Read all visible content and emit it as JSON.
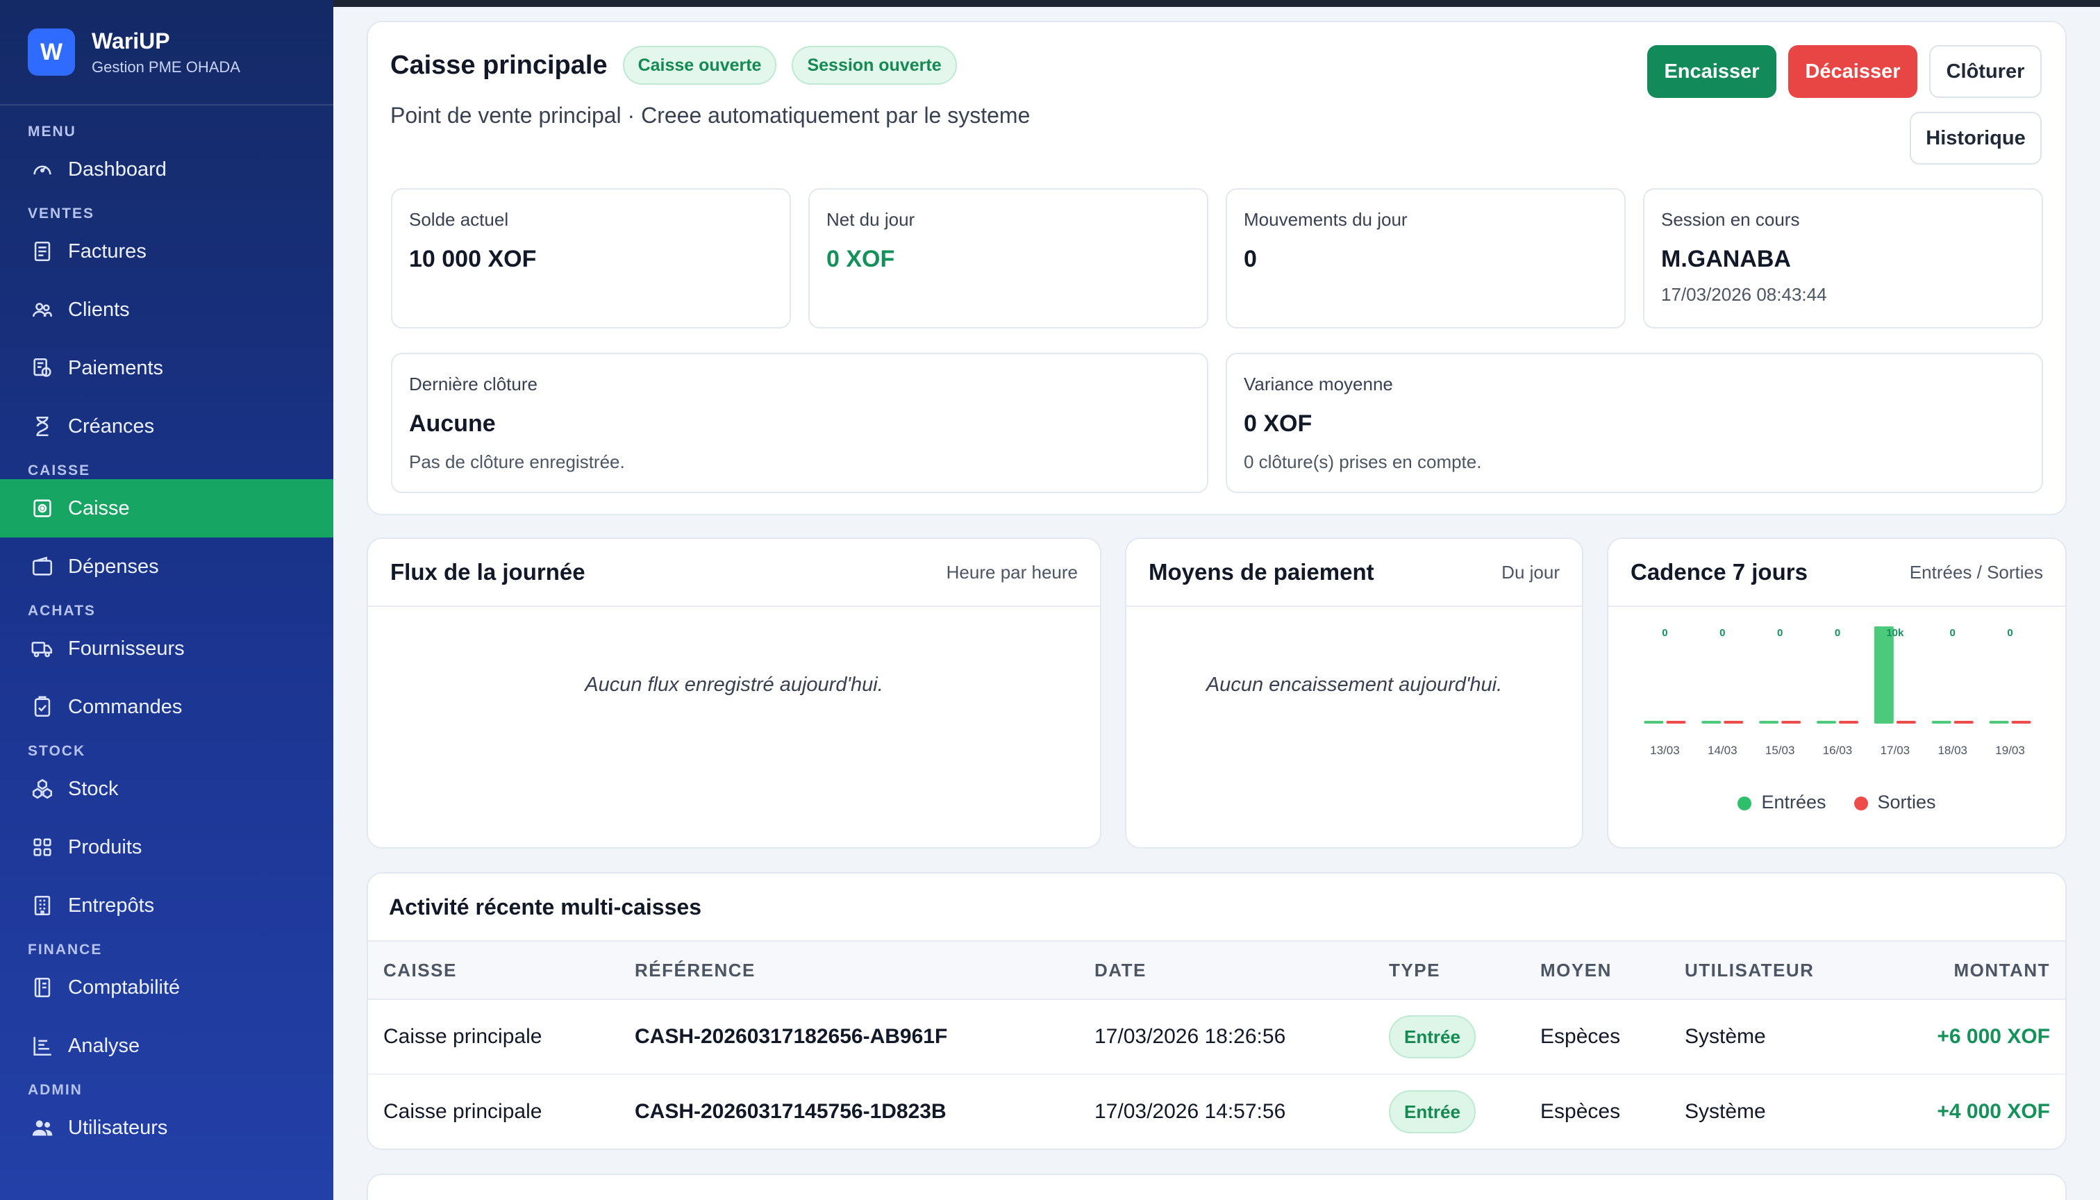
{
  "brand": {
    "logo_letter": "W",
    "name": "WariUP",
    "subtitle": "Gestion PME OHADA"
  },
  "sidebar": {
    "sections": [
      {
        "label": "MENU",
        "items": [
          {
            "label": "Dashboard",
            "icon": "gauge-icon"
          }
        ]
      },
      {
        "label": "VENTES",
        "items": [
          {
            "label": "Factures",
            "icon": "invoice-icon"
          },
          {
            "label": "Clients",
            "icon": "users-icon"
          },
          {
            "label": "Paiements",
            "icon": "payment-icon"
          },
          {
            "label": "Créances",
            "icon": "hourglass-icon"
          }
        ]
      },
      {
        "label": "CAISSE",
        "items": [
          {
            "label": "Caisse",
            "icon": "cash-register-icon",
            "active": true
          },
          {
            "label": "Dépenses",
            "icon": "wallet-icon"
          }
        ]
      },
      {
        "label": "ACHATS",
        "items": [
          {
            "label": "Fournisseurs",
            "icon": "truck-icon"
          },
          {
            "label": "Commandes",
            "icon": "clipboard-check-icon"
          }
        ]
      },
      {
        "label": "STOCK",
        "items": [
          {
            "label": "Stock",
            "icon": "boxes-icon"
          },
          {
            "label": "Produits",
            "icon": "grid-icon"
          },
          {
            "label": "Entrepôts",
            "icon": "building-icon"
          }
        ]
      },
      {
        "label": "FINANCE",
        "items": [
          {
            "label": "Comptabilité",
            "icon": "ledger-icon"
          },
          {
            "label": "Analyse",
            "icon": "bars-icon"
          }
        ]
      },
      {
        "label": "ADMIN",
        "items": [
          {
            "label": "Utilisateurs",
            "icon": "users-solid-icon"
          }
        ]
      }
    ]
  },
  "header": {
    "title": "Caisse principale",
    "badges": [
      "Caisse ouverte",
      "Session ouverte"
    ],
    "description": "Point de vente principal · Creee automatiquement par le systeme",
    "buttons": {
      "encaisser": "Encaisser",
      "decaisser": "Décaisser",
      "cloturer": "Clôturer",
      "historique": "Historique"
    }
  },
  "stats": {
    "solde": {
      "label": "Solde actuel",
      "value": "10 000 XOF"
    },
    "net": {
      "label": "Net du jour",
      "value": "0 XOF"
    },
    "mouvements": {
      "label": "Mouvements du jour",
      "value": "0"
    },
    "session": {
      "label": "Session en cours",
      "value": "M.GANABA",
      "sub": "17/03/2026 08:43:44"
    },
    "cloture": {
      "label": "Dernière clôture",
      "value": "Aucune",
      "sub": "Pas de clôture enregistrée."
    },
    "variance": {
      "label": "Variance moyenne",
      "value": "0 XOF",
      "sub": "0 clôture(s) prises en compte."
    }
  },
  "panels": {
    "flux": {
      "title": "Flux de la journée",
      "meta": "Heure par heure",
      "empty": "Aucun flux enregistré aujourd'hui."
    },
    "moyens": {
      "title": "Moyens de paiement",
      "meta": "Du jour",
      "empty": "Aucun encaissement aujourd'hui."
    },
    "cadence": {
      "title": "Cadence 7 jours",
      "meta": "Entrées / Sorties"
    }
  },
  "chart_data": {
    "type": "bar",
    "categories": [
      "13/03",
      "14/03",
      "15/03",
      "16/03",
      "17/03",
      "18/03",
      "19/03"
    ],
    "series": [
      {
        "name": "Entrées",
        "values": [
          0,
          0,
          0,
          0,
          10000,
          0,
          0
        ],
        "color": "#4cc97a"
      },
      {
        "name": "Sorties",
        "values": [
          0,
          0,
          0,
          0,
          0,
          0,
          0
        ],
        "color": "#ee4b4b"
      }
    ],
    "data_labels": [
      "0",
      "0",
      "0",
      "0",
      "10k",
      "0",
      "0"
    ],
    "legend": [
      "Entrées",
      "Sorties"
    ],
    "legend_position": "bottom",
    "ylim": [
      0,
      10000
    ]
  },
  "activity": {
    "title": "Activité récente multi-caisses",
    "columns": [
      "CAISSE",
      "RÉFÉRENCE",
      "DATE",
      "TYPE",
      "MOYEN",
      "UTILISATEUR",
      "MONTANT"
    ],
    "rows": [
      {
        "caisse": "Caisse principale",
        "reference": "CASH-20260317182656-AB961F",
        "date": "17/03/2026 18:26:56",
        "type": "Entrée",
        "moyen": "Espèces",
        "utilisateur": "Système",
        "montant": "+6 000 XOF"
      },
      {
        "caisse": "Caisse principale",
        "reference": "CASH-20260317145756-1D823B",
        "date": "17/03/2026 14:57:56",
        "type": "Entrée",
        "moyen": "Espèces",
        "utilisateur": "Système",
        "montant": "+4 000 XOF"
      }
    ]
  },
  "colors": {
    "accent_green": "#17a564",
    "danger_red": "#e84545",
    "sidebar_blue": "#1b3591"
  }
}
